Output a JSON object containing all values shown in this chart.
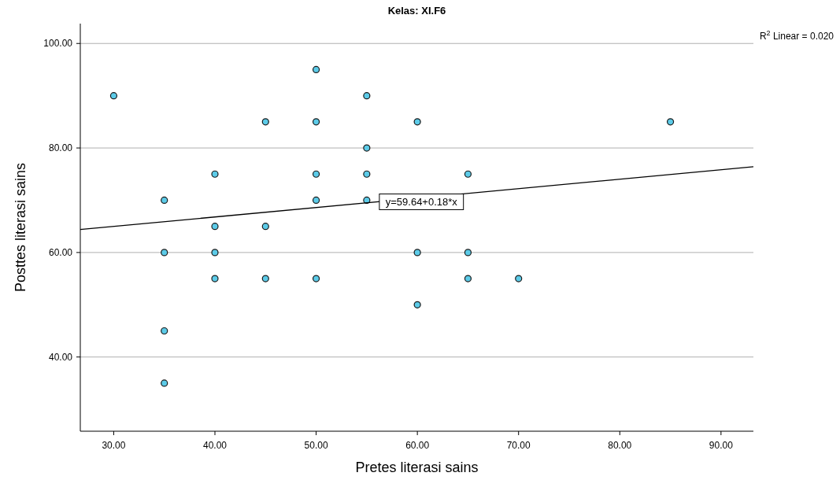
{
  "chart_data": {
    "type": "scatter",
    "title": "Kelas: XI.F6",
    "xlabel": "Pretes literasi sains",
    "ylabel": "Posttes literasi sains",
    "xlim": [
      26.7,
      93.2
    ],
    "ylim": [
      25.8,
      103.8
    ],
    "xticks": [
      {
        "value": 30,
        "label": "30.00"
      },
      {
        "value": 40,
        "label": "40.00"
      },
      {
        "value": 50,
        "label": "50.00"
      },
      {
        "value": 60,
        "label": "60.00"
      },
      {
        "value": 70,
        "label": "70.00"
      },
      {
        "value": 80,
        "label": "80.00"
      },
      {
        "value": 90,
        "label": "90.00"
      }
    ],
    "yticks": [
      {
        "value": 40,
        "label": "40.00"
      },
      {
        "value": 60,
        "label": "60.00"
      },
      {
        "value": 80,
        "label": "80.00"
      },
      {
        "value": 100,
        "label": "100.00"
      }
    ],
    "grid": "y",
    "marker": "circle",
    "series": [
      {
        "color": "#5ccbe8",
        "x": [
          30,
          35,
          35,
          35,
          35,
          40,
          40,
          40,
          40,
          45,
          45,
          45,
          50,
          50,
          50,
          50,
          50,
          55,
          55,
          55,
          55,
          60,
          60,
          60,
          65,
          65,
          65,
          70,
          85
        ],
        "values": [
          90,
          70,
          60,
          45,
          35,
          75,
          65,
          60,
          55,
          85,
          65,
          55,
          95,
          85,
          75,
          70,
          55,
          90,
          80,
          75,
          70,
          85,
          60,
          50,
          75,
          60,
          55,
          55,
          85
        ]
      },
      {
        "type": "line",
        "marker": "none",
        "color": "#000000",
        "x": [
          26.7,
          93.2
        ],
        "values": [
          64.4,
          76.4
        ]
      }
    ],
    "annotations": [
      {
        "text": "y=59.64+0.18*x",
        "x": 60.4,
        "y": 69.7
      },
      "R$^{2}$ Linear = 0.020"
    ]
  }
}
